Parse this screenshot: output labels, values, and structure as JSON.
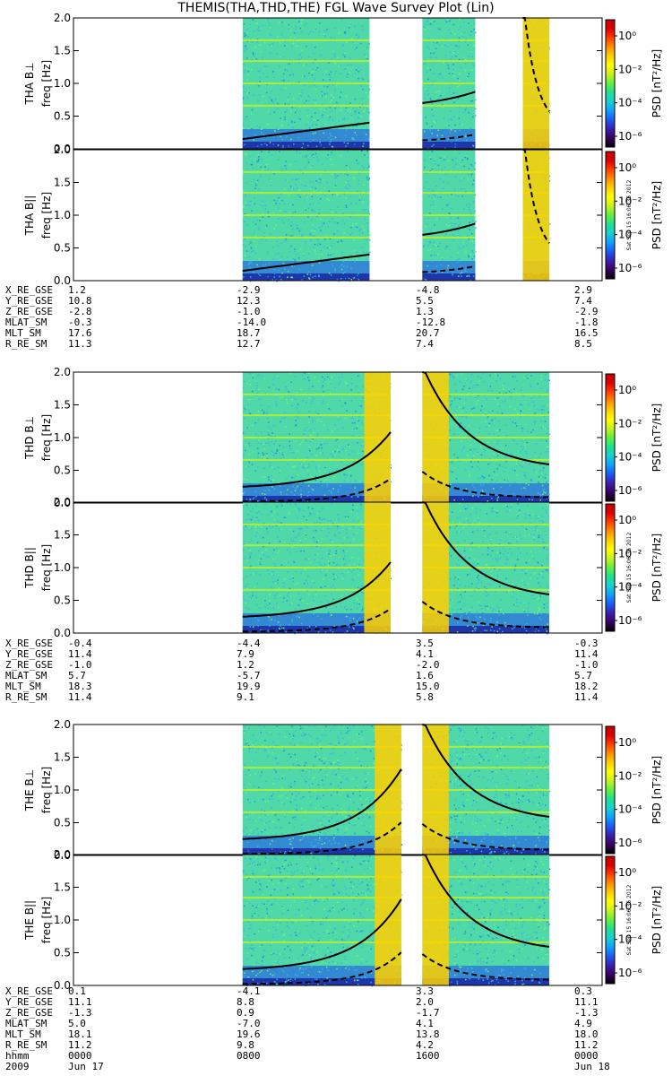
{
  "title": "THEMIS(THA,THD,THE) FGL Wave Survey Plot (Lin)",
  "colors": {
    "colorbar": [
      "#000000",
      "#3a0060",
      "#3b1fb0",
      "#1b5cf0",
      "#10a0ff",
      "#18d0d0",
      "#20e090",
      "#60f040",
      "#c8f020",
      "#ffff00",
      "#ffd000",
      "#ff9000",
      "#ff4000",
      "#e00000",
      "#c00000"
    ],
    "background": "#4fd8a8"
  },
  "chart_data": [
    {
      "type": "heatmap",
      "panel": "THA B⊥",
      "ylabel": "THA B⊥",
      "yunit": "freq [Hz]",
      "ylim": [
        0,
        2
      ],
      "yticks": [
        "0.0",
        "0.5",
        "1.0",
        "1.5",
        "2.0"
      ],
      "colorbar": {
        "label": "PSD [nT²/Hz]",
        "ticks": [
          "10⁰",
          "10⁻²",
          "10⁻⁴",
          "10⁻⁶"
        ]
      },
      "data_intervals": [
        [
          0.32,
          0.56
        ],
        [
          0.66,
          0.76
        ],
        [
          0.85,
          0.9
        ]
      ],
      "stamp": ""
    },
    {
      "type": "heatmap",
      "panel": "THA B||",
      "ylabel": "THA B||",
      "yunit": "freq [Hz]",
      "ylim": [
        0,
        2
      ],
      "yticks": [
        "0.0",
        "0.5",
        "1.0",
        "1.5",
        "2.0"
      ],
      "colorbar": {
        "label": "PSD [nT²/Hz]",
        "ticks": [
          "10⁰",
          "10⁻²",
          "10⁻⁴",
          "10⁻⁶"
        ]
      },
      "data_intervals": [
        [
          0.32,
          0.56
        ],
        [
          0.66,
          0.76
        ],
        [
          0.85,
          0.9
        ]
      ],
      "stamp": "Sat Sep 15 16:06:35 2012"
    },
    {
      "type": "heatmap",
      "panel": "THD B⊥",
      "ylabel": "THD B⊥",
      "yunit": "freq [Hz]",
      "ylim": [
        0,
        2
      ],
      "yticks": [
        "0.0",
        "0.5",
        "1.0",
        "1.5",
        "2.0"
      ],
      "colorbar": {
        "label": "PSD [nT²/Hz]",
        "ticks": [
          "10⁰",
          "10⁻²",
          "10⁻⁴",
          "10⁻⁶"
        ]
      },
      "data_intervals": [
        [
          0.32,
          0.6
        ],
        [
          0.66,
          0.9
        ]
      ],
      "stamp": ""
    },
    {
      "type": "heatmap",
      "panel": "THD B||",
      "ylabel": "THD B||",
      "yunit": "freq [Hz]",
      "ylim": [
        0,
        2
      ],
      "yticks": [
        "0.0",
        "0.5",
        "1.0",
        "1.5",
        "2.0"
      ],
      "colorbar": {
        "label": "PSD [nT²/Hz]",
        "ticks": [
          "10⁰",
          "10⁻²",
          "10⁻⁴",
          "10⁻⁶"
        ]
      },
      "data_intervals": [
        [
          0.32,
          0.6
        ],
        [
          0.66,
          0.9
        ]
      ],
      "stamp": "Sat Sep 15 16:06:36 2012"
    },
    {
      "type": "heatmap",
      "panel": "THE B⊥",
      "ylabel": "THE B⊥",
      "yunit": "freq [Hz]",
      "ylim": [
        0,
        2
      ],
      "yticks": [
        "0.0",
        "0.5",
        "1.0",
        "1.5",
        "2.0"
      ],
      "colorbar": {
        "label": "PSD [nT²/Hz]",
        "ticks": [
          "10⁰",
          "10⁻²",
          "10⁻⁴",
          "10⁻⁶"
        ]
      },
      "data_intervals": [
        [
          0.32,
          0.62
        ],
        [
          0.66,
          0.9
        ]
      ],
      "stamp": ""
    },
    {
      "type": "heatmap",
      "panel": "THE B||",
      "ylabel": "THE B||",
      "yunit": "freq [Hz]",
      "ylim": [
        0,
        2
      ],
      "yticks": [
        "0.0",
        "0.5",
        "1.0",
        "1.5",
        "2.0"
      ],
      "colorbar": {
        "label": "PSD [nT²/Hz]",
        "ticks": [
          "10⁰",
          "10⁻²",
          "10⁻⁴",
          "10⁻⁶"
        ]
      },
      "data_intervals": [
        [
          0.32,
          0.62
        ],
        [
          0.66,
          0.9
        ]
      ],
      "stamp": "Sat Sep 15 16:06:36 2012"
    }
  ],
  "ephemeris": {
    "tha": {
      "rows": [
        {
          "label": "X_RE_GSE",
          "values": [
            "1.2",
            "-2.9",
            "-4.8",
            "2.9"
          ]
        },
        {
          "label": "Y_RE_GSE",
          "values": [
            "10.8",
            "12.3",
            "5.5",
            "7.4"
          ]
        },
        {
          "label": "Z_RE_GSE",
          "values": [
            "-2.8",
            "-1.0",
            "1.3",
            "-2.9"
          ]
        },
        {
          "label": "MLAT_SM",
          "values": [
            "-0.3",
            "-14.0",
            "-12.8",
            "-1.8"
          ]
        },
        {
          "label": "MLT_SM",
          "values": [
            "17.6",
            "18.7",
            "20.7",
            "16.5"
          ]
        },
        {
          "label": "R_RE_SM",
          "values": [
            "11.3",
            "12.7",
            "7.4",
            "8.5"
          ]
        }
      ]
    },
    "thd": {
      "rows": [
        {
          "label": "X_RE_GSE",
          "values": [
            "-0.4",
            "-4.4",
            "3.5",
            "-0.3"
          ]
        },
        {
          "label": "Y_RE_GSE",
          "values": [
            "11.4",
            "7.9",
            "4.1",
            "11.4"
          ]
        },
        {
          "label": "Z_RE_GSE",
          "values": [
            "-1.0",
            "1.2",
            "-2.0",
            "-1.0"
          ]
        },
        {
          "label": "MLAT_SM",
          "values": [
            "5.7",
            "-5.7",
            "1.6",
            "5.7"
          ]
        },
        {
          "label": "MLT_SM",
          "values": [
            "18.3",
            "19.9",
            "15.0",
            "18.2"
          ]
        },
        {
          "label": "R_RE_SM",
          "values": [
            "11.4",
            "9.1",
            "5.8",
            "11.4"
          ]
        }
      ]
    },
    "the": {
      "rows": [
        {
          "label": "X_RE_GSE",
          "values": [
            "0.1",
            "-4.1",
            "3.3",
            "0.3"
          ]
        },
        {
          "label": "Y_RE_GSE",
          "values": [
            "11.1",
            "8.8",
            "2.0",
            "11.1"
          ]
        },
        {
          "label": "Z_RE_GSE",
          "values": [
            "-1.3",
            "0.9",
            "-1.7",
            "-1.3"
          ]
        },
        {
          "label": "MLAT_SM",
          "values": [
            "5.0",
            "-7.0",
            "4.1",
            "4.9"
          ]
        },
        {
          "label": "MLT_SM",
          "values": [
            "18.1",
            "19.6",
            "13.8",
            "18.0"
          ]
        },
        {
          "label": "R_RE_SM",
          "values": [
            "11.2",
            "9.8",
            "4.2",
            "11.2"
          ]
        },
        {
          "label": "hhmm",
          "values": [
            "0000",
            "0800",
            "1600",
            "0000"
          ]
        },
        {
          "label": "2009",
          "values": [
            "Jun 17",
            "",
            "",
            "Jun 18"
          ]
        }
      ]
    }
  }
}
